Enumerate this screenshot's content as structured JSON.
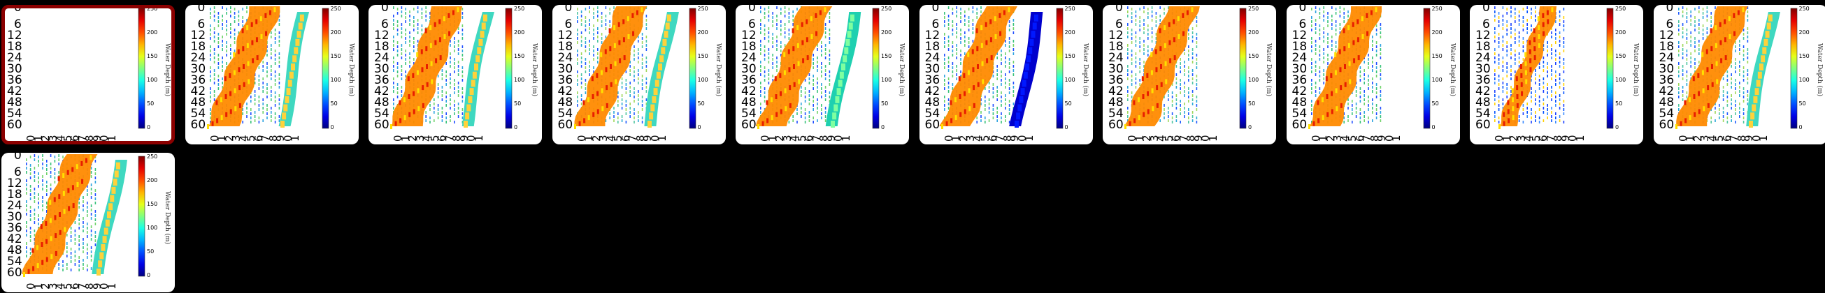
{
  "thumbnails": [
    {
      "style": "empty",
      "selected": true,
      "strip": "none"
    },
    {
      "style": "full",
      "selected": false,
      "strip": "jet"
    },
    {
      "style": "full",
      "selected": false,
      "strip": "jet"
    },
    {
      "style": "full",
      "selected": false,
      "strip": "jet"
    },
    {
      "style": "full",
      "selected": false,
      "strip": "greenish"
    },
    {
      "style": "full",
      "selected": false,
      "strip": "blue"
    },
    {
      "style": "full",
      "selected": false,
      "strip": "none"
    },
    {
      "style": "full",
      "selected": false,
      "strip": "none"
    },
    {
      "style": "sparse",
      "selected": false,
      "strip": "none"
    },
    {
      "style": "full",
      "selected": false,
      "strip": "jet"
    },
    {
      "style": "full",
      "selected": false,
      "strip": "jet"
    }
  ],
  "axis": {
    "y_ticks": [
      "0",
      "6",
      "12",
      "18",
      "24",
      "30",
      "36",
      "42",
      "48",
      "54",
      "60"
    ],
    "x_ticks": [
      "0",
      "1",
      "2",
      "3",
      "4",
      "5",
      "6",
      "7",
      "8",
      "9",
      "0",
      "1"
    ]
  },
  "colorbar": {
    "label": "Water Depth (m)",
    "ticks": [
      "250",
      "200",
      "150",
      "100",
      "50",
      "0"
    ],
    "colormap": "jet"
  },
  "colors": {
    "page_background": "#000000",
    "card_background": "#ffffff",
    "selected_border": "#8b0000"
  }
}
